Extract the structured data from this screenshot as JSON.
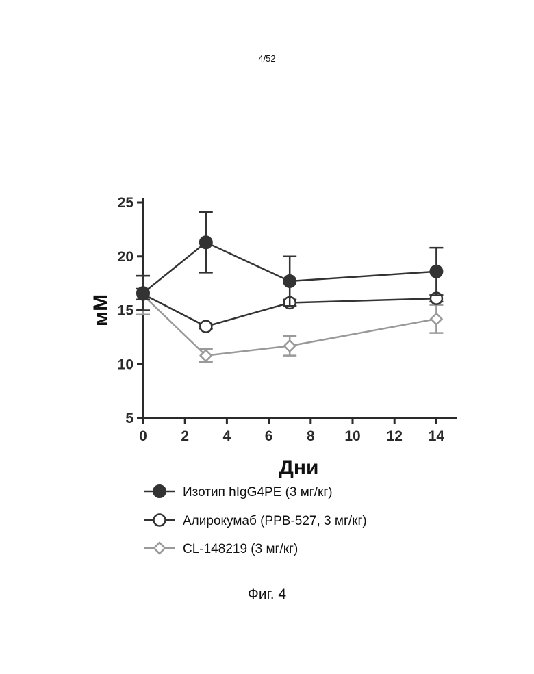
{
  "page_number": "4/52",
  "figure_caption": "Фиг. 4",
  "chart_data": {
    "type": "line",
    "title": "",
    "xlabel": "Дни",
    "ylabel": "мМ",
    "xlim": [
      0,
      15
    ],
    "ylim": [
      5,
      25
    ],
    "xticks": [
      0,
      2,
      4,
      6,
      8,
      10,
      12,
      14
    ],
    "yticks": [
      5,
      10,
      15,
      20,
      25
    ],
    "x_tick_labels": [
      "0",
      "2",
      "4",
      "6",
      "8",
      "10",
      "12",
      "14"
    ],
    "y_tick_labels": [
      "5",
      "10",
      "15",
      "20",
      "25"
    ],
    "legend_position": "below",
    "grid": false,
    "x": [
      0,
      3,
      7,
      14
    ],
    "series": [
      {
        "name": "Изотип hIgG4PE (3 мг/кг)",
        "marker": "filled-circle",
        "color": "#333333",
        "values": [
          16.6,
          21.3,
          17.7,
          18.6
        ],
        "error": [
          1.6,
          2.8,
          2.3,
          2.2
        ]
      },
      {
        "name": "Алирокумаб (PPB-527, 3 мг/кг)",
        "marker": "open-circle",
        "color": "#333333",
        "values": [
          16.5,
          13.5,
          15.7,
          16.1
        ],
        "error": [
          0.5,
          0.2,
          0.3,
          0.3
        ]
      },
      {
        "name": "CL-148219 (3 мг/кг)",
        "marker": "open-diamond",
        "color": "#999999",
        "values": [
          16.4,
          10.8,
          11.7,
          14.2
        ],
        "error": [
          1.8,
          0.6,
          0.9,
          1.3
        ]
      }
    ]
  }
}
